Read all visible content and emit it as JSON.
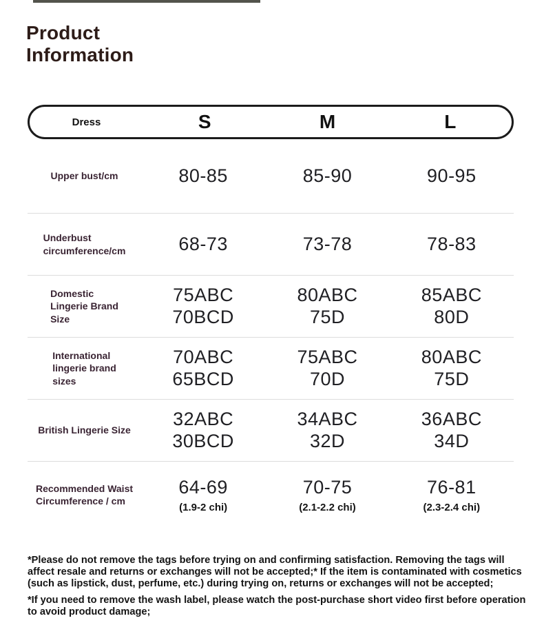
{
  "header": {
    "title": "Product\nInformation"
  },
  "table": {
    "header": {
      "label": "Dress",
      "columns": [
        "S",
        "M",
        "L"
      ]
    },
    "rows": [
      {
        "label": "Upper bust/cm",
        "values": [
          "80-85",
          "85-90",
          "90-95"
        ]
      },
      {
        "label": "Underbust\ncircumference/cm",
        "values": [
          "68-73",
          "73-78",
          "78-83"
        ]
      },
      {
        "label": "Domestic\nLingerie Brand\nSize",
        "values": [
          "75ABC\n70BCD",
          "80ABC\n75D",
          "85ABC\n80D"
        ]
      },
      {
        "label": "International\nlingerie brand\nsizes",
        "values": [
          "70ABC\n65BCD",
          "75ABC\n70D",
          "80ABC\n75D"
        ]
      },
      {
        "label": "British Lingerie Size",
        "values": [
          "32ABC\n30BCD",
          "34ABC\n32D",
          "36ABC\n34D"
        ]
      },
      {
        "label": "Recommended Waist\nCircumference / cm",
        "values": [
          {
            "main": "64-69",
            "sub": "(1.9-2 chi)"
          },
          {
            "main": "70-75",
            "sub": "(2.1-2.2 chi)"
          },
          {
            "main": "76-81",
            "sub": "(2.3-2.4 chi)"
          }
        ]
      }
    ]
  },
  "footnotes": [
    "*Please do not remove the tags before trying on and confirming satisfaction. Removing the tags will affect resale and returns or exchanges will not be accepted;* If the item is contaminated with cosmetics (such as lipstick, dust, perfume, etc.) during trying on, returns or exchanges will not be accepted;",
    "*If you need to remove the wash label, please watch the post-purchase short video first before operation to avoid product damage;"
  ],
  "colors": {
    "top_rule": "#53544c",
    "title_text": "#2d1c18",
    "pill_border": "#1b1b1b",
    "label_text": "#3a2433",
    "value_text": "#202024",
    "separator": "#dcdcdc",
    "footnote_text": "#141414"
  }
}
